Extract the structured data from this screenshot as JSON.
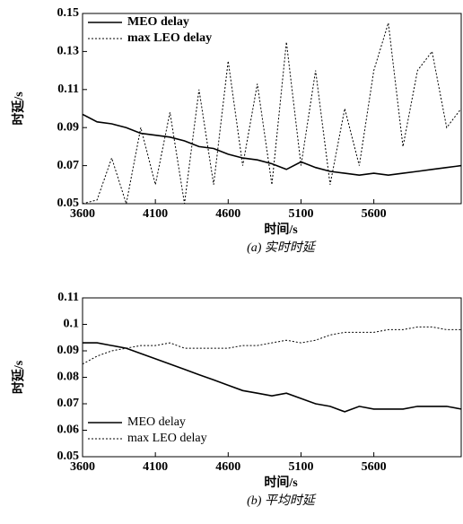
{
  "chart_data": [
    {
      "type": "line",
      "xlabel": "时间/s",
      "ylabel": "时延/s",
      "caption": "(a) 实时时延",
      "x": [
        3600,
        3700,
        3800,
        3900,
        4000,
        4100,
        4200,
        4300,
        4400,
        4500,
        4600,
        4700,
        4800,
        4900,
        5000,
        5100,
        5200,
        5300,
        5400,
        5500,
        5600,
        5700,
        5800,
        5900,
        6000,
        6100,
        6200
      ],
      "series": [
        {
          "name": "MEO delay",
          "color": "#000000",
          "style": "solid",
          "values": [
            0.097,
            0.093,
            0.092,
            0.09,
            0.087,
            0.086,
            0.085,
            0.083,
            0.08,
            0.079,
            0.076,
            0.074,
            0.073,
            0.071,
            0.068,
            0.072,
            0.069,
            0.067,
            0.066,
            0.065,
            0.066,
            0.065,
            0.066,
            0.067,
            0.068,
            0.069,
            0.07
          ]
        },
        {
          "name": "max LEO delay",
          "color": "#000000",
          "style": "dotted",
          "values": [
            0.05,
            0.052,
            0.074,
            0.05,
            0.09,
            0.06,
            0.098,
            0.05,
            0.11,
            0.06,
            0.125,
            0.07,
            0.113,
            0.06,
            0.135,
            0.07,
            0.12,
            0.06,
            0.1,
            0.07,
            0.12,
            0.145,
            0.08,
            0.12,
            0.13,
            0.09,
            0.1
          ]
        }
      ],
      "xlim": [
        3600,
        6200
      ],
      "xticks": [
        3600,
        4100,
        4600,
        5100,
        5600
      ],
      "ylim": [
        0.05,
        0.15
      ],
      "yticks": [
        0.05,
        0.07,
        0.09,
        0.11,
        0.13,
        0.15
      ],
      "legend": "upper-left"
    },
    {
      "type": "line",
      "xlabel": "时间/s",
      "ylabel": "时延/s",
      "caption": "(b) 平均时延",
      "x": [
        3600,
        3700,
        3800,
        3900,
        4000,
        4100,
        4200,
        4300,
        4400,
        4500,
        4600,
        4700,
        4800,
        4900,
        5000,
        5100,
        5200,
        5300,
        5400,
        5500,
        5600,
        5700,
        5800,
        5900,
        6000,
        6100,
        6200
      ],
      "series": [
        {
          "name": "MEO delay",
          "color": "#000000",
          "style": "solid",
          "values": [
            0.093,
            0.093,
            0.092,
            0.091,
            0.089,
            0.087,
            0.085,
            0.083,
            0.081,
            0.079,
            0.077,
            0.075,
            0.074,
            0.073,
            0.074,
            0.072,
            0.07,
            0.069,
            0.067,
            0.069,
            0.068,
            0.068,
            0.068,
            0.069,
            0.069,
            0.069,
            0.068
          ]
        },
        {
          "name": "max LEO delay",
          "color": "#000000",
          "style": "dotted",
          "values": [
            0.085,
            0.088,
            0.09,
            0.091,
            0.092,
            0.092,
            0.093,
            0.091,
            0.091,
            0.091,
            0.091,
            0.092,
            0.092,
            0.093,
            0.094,
            0.093,
            0.094,
            0.096,
            0.097,
            0.097,
            0.097,
            0.098,
            0.098,
            0.099,
            0.099,
            0.098,
            0.098
          ]
        }
      ],
      "xlim": [
        3600,
        6200
      ],
      "xticks": [
        3600,
        4100,
        4600,
        5100,
        5600
      ],
      "ylim": [
        0.05,
        0.11
      ],
      "yticks": [
        0.05,
        0.06,
        0.07,
        0.08,
        0.09,
        0.1,
        0.11
      ],
      "legend": "lower-left"
    }
  ]
}
